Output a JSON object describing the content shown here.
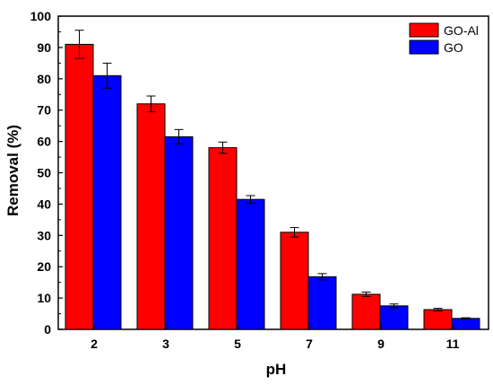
{
  "chart_data": {
    "type": "bar",
    "title": "",
    "xlabel": "pH",
    "ylabel": "Removal (%)",
    "categories": [
      "2",
      "3",
      "5",
      "7",
      "9",
      "11"
    ],
    "ylim": [
      0,
      100
    ],
    "yticks": [
      0,
      10,
      20,
      30,
      40,
      50,
      60,
      70,
      80,
      90,
      100
    ],
    "grid": false,
    "legend_position": "top-right",
    "series": [
      {
        "name": "GO-Al",
        "color": "#ff0000",
        "values": [
          91,
          72,
          58,
          31,
          11.2,
          6.3
        ],
        "errors": [
          4.5,
          2.5,
          1.8,
          1.5,
          0.7,
          0.4
        ]
      },
      {
        "name": "GO",
        "color": "#0000ff",
        "values": [
          81,
          61.5,
          41.5,
          16.8,
          7.5,
          3.5
        ],
        "errors": [
          4,
          2.3,
          1.2,
          1.0,
          0.6,
          0.2
        ]
      }
    ]
  }
}
